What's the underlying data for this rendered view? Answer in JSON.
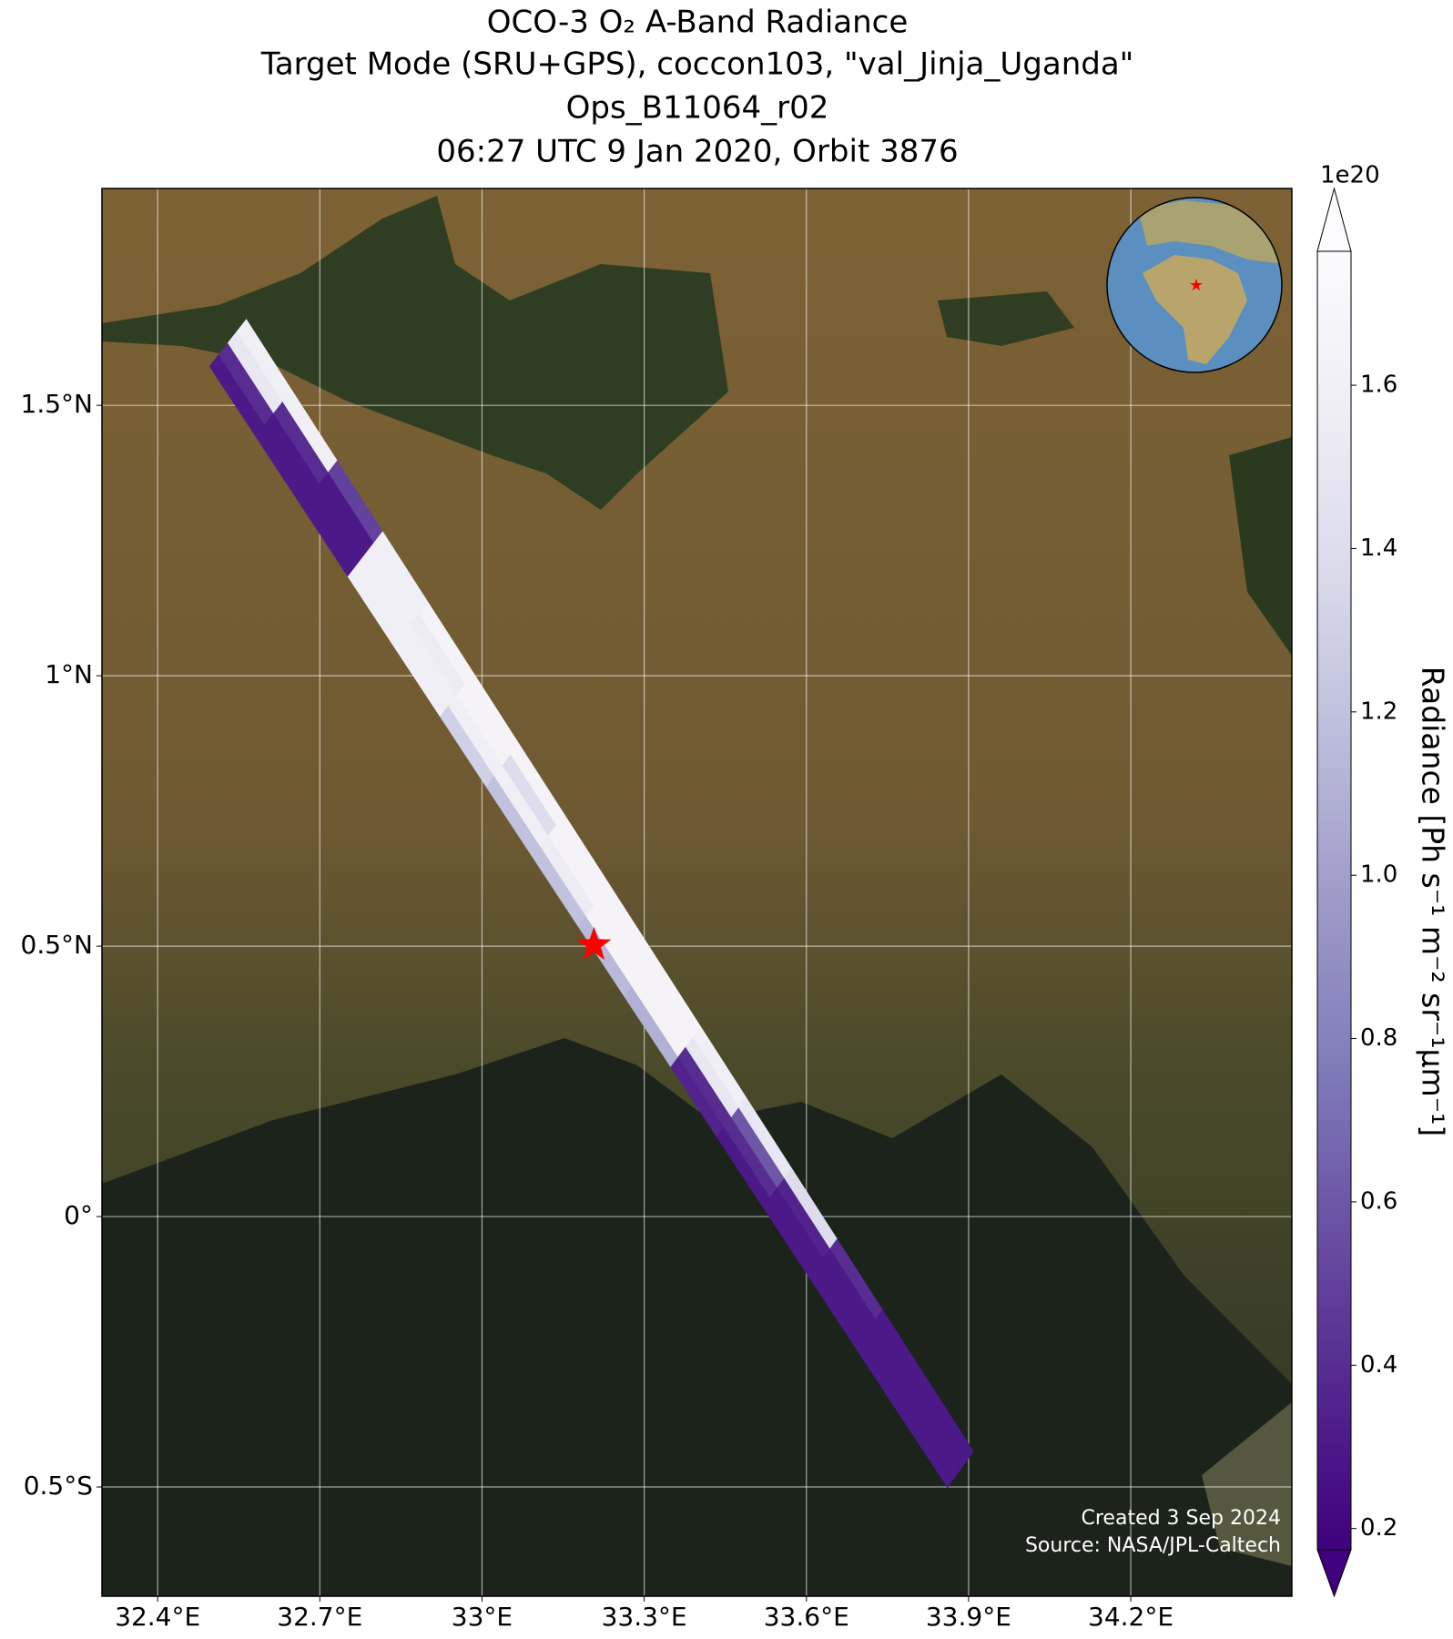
{
  "chart_data": {
    "type": "swath-map",
    "title": [
      "OCO-3 O₂ A-Band Radiance",
      "Target Mode (SRU+GPS), coccon103, \"val_Jinja_Uganda\"",
      "Ops_B11064_r02",
      "06:27 UTC 9 Jan 2020, Orbit 3876"
    ],
    "xlim": [
      32.297,
      34.498
    ],
    "ylim": [
      -0.702,
      1.901
    ],
    "xticks": [
      {
        "value": 32.4,
        "label": "32.4°E"
      },
      {
        "value": 32.7,
        "label": "32.7°E"
      },
      {
        "value": 33,
        "label": "33°E"
      },
      {
        "value": 33.3,
        "label": "33.3°E"
      },
      {
        "value": 33.6,
        "label": "33.6°E"
      },
      {
        "value": 33.9,
        "label": "33.9°E"
      },
      {
        "value": 34.2,
        "label": "34.2°E"
      }
    ],
    "yticks": [
      {
        "value": -0.5,
        "label": "0.5°S"
      },
      {
        "value": 0,
        "label": "0°"
      },
      {
        "value": 0.5,
        "label": "0.5°N"
      },
      {
        "value": 1,
        "label": "1°N"
      },
      {
        "value": 1.5,
        "label": "1.5°N"
      }
    ],
    "grid": true,
    "swath": {
      "left_edge": [
        [
          32.496,
          1.572
        ],
        [
          33.861,
          -0.501
        ]
      ],
      "right_edge": [
        [
          32.564,
          1.659
        ],
        [
          33.909,
          -0.434
        ]
      ],
      "rows": [
        [
          0.3,
          0.4,
          1.5,
          1.6
        ],
        [
          0.3,
          0.3,
          0.4,
          1.6
        ],
        [
          0.3,
          0.3,
          0.3,
          0.5
        ],
        [
          1.6,
          1.6,
          1.6,
          1.6
        ],
        [
          1.6,
          1.6,
          1.55,
          1.65
        ],
        [
          1.3,
          1.6,
          1.65,
          1.65
        ],
        [
          1.2,
          1.6,
          1.4,
          1.65
        ],
        [
          1.2,
          1.55,
          1.65,
          1.65
        ],
        [
          1.15,
          1.65,
          1.65,
          1.65
        ],
        [
          1.1,
          1.65,
          1.65,
          1.65
        ],
        [
          0.35,
          0.4,
          1.5,
          1.6
        ],
        [
          0.3,
          0.4,
          0.6,
          1.5
        ],
        [
          0.3,
          0.3,
          0.35,
          1.4
        ],
        [
          0.3,
          0.3,
          0.3,
          0.4
        ],
        [
          0.3,
          0.3,
          0.3,
          0.3
        ],
        [
          0.3,
          0.3,
          0.3,
          0.3
        ]
      ]
    },
    "target": {
      "lon": 33.207,
      "lat": 0.502,
      "color": "#ff0000"
    },
    "colormap": [
      "#3f007d",
      "#54278f",
      "#6a51a3",
      "#807dba",
      "#9e9ac8",
      "#bcbddc",
      "#dadaeb",
      "#efedf5",
      "#fcfbfd"
    ],
    "clim": [
      0.174,
      1.764
    ],
    "colorbar_ticks": [
      0.2,
      0.4,
      0.6,
      0.8,
      1.0,
      1.2,
      1.4,
      1.6
    ],
    "colorbar_offset": "1e20",
    "colorbar_label": "Radiance [Ph s⁻¹ m⁻² sr⁻¹µm⁻¹]",
    "footer": [
      "Created 3 Sep 2024",
      "Source: NASA/JPL-Caltech"
    ]
  }
}
